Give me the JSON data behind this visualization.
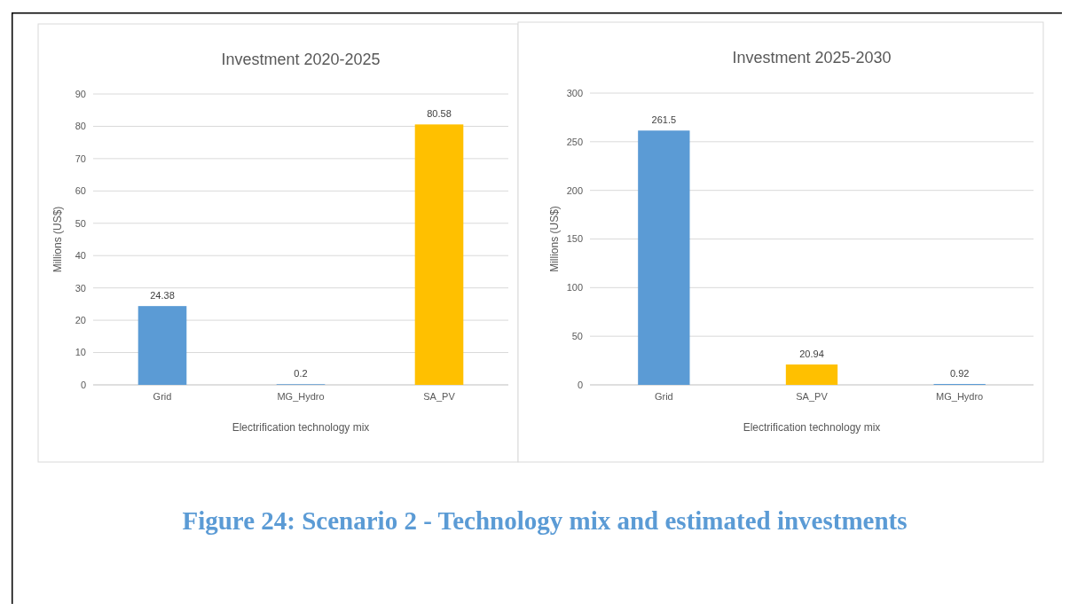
{
  "chart_data": [
    {
      "type": "bar",
      "title": "Investment 2020-2025",
      "xlabel": "Electrification technology mix",
      "ylabel": "Millions (US$)",
      "categories": [
        "Grid",
        "MG_Hydro",
        "SA_PV"
      ],
      "values": [
        24.38,
        0.2,
        80.58
      ],
      "colors": [
        "#5b9bd5",
        "#5b9bd5",
        "#ffc000"
      ],
      "ylim": [
        0,
        90
      ],
      "yticks": [
        0,
        10,
        20,
        30,
        40,
        50,
        60,
        70,
        80,
        90
      ],
      "grid": "y",
      "data_labels": true
    },
    {
      "type": "bar",
      "title": "Investment 2025-2030",
      "xlabel": "Electrification technology mix",
      "ylabel": "Millions (US$)",
      "categories": [
        "Grid",
        "SA_PV",
        "MG_Hydro"
      ],
      "values": [
        261.5,
        20.94,
        0.92
      ],
      "colors": [
        "#5b9bd5",
        "#ffc000",
        "#5b9bd5"
      ],
      "ylim": [
        0,
        300
      ],
      "yticks": [
        0,
        50,
        100,
        150,
        200,
        250,
        300
      ],
      "grid": "y",
      "data_labels": true,
      "annotations": [
        "Figure 24: Scenario 2 - Technology mix and estimated investments"
      ]
    }
  ]
}
